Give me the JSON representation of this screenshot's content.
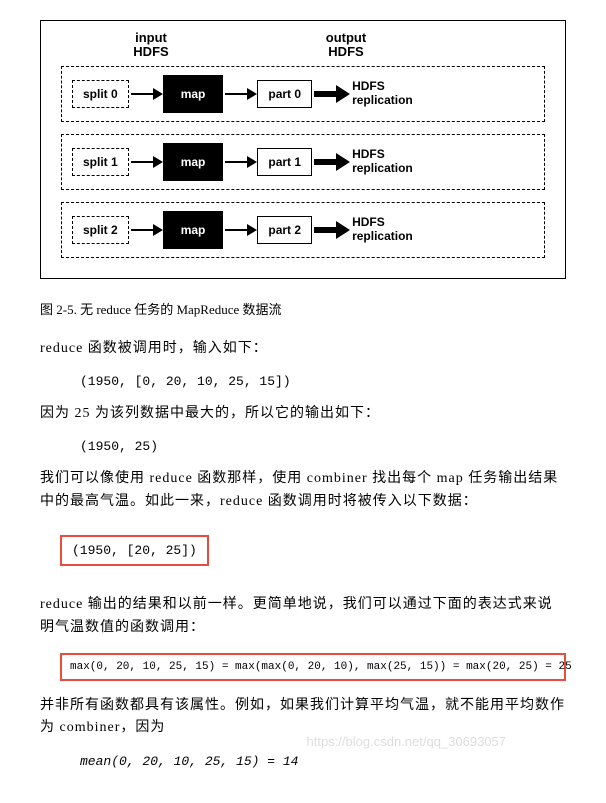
{
  "figure": {
    "input_label": "input\nHDFS",
    "output_label": "output\nHDFS",
    "rows": [
      {
        "split": "split 0",
        "map": "map",
        "part": "part 0",
        "repl": "HDFS\nreplication"
      },
      {
        "split": "split 1",
        "map": "map",
        "part": "part 1",
        "repl": "HDFS\nreplication"
      },
      {
        "split": "split 2",
        "map": "map",
        "part": "part 2",
        "repl": "HDFS\nreplication"
      }
    ]
  },
  "caption": "图 2-5. 无 reduce 任务的 MapReduce 数据流",
  "p1": "reduce 函数被调用时，输入如下：",
  "code1": "(1950, [0, 20, 10, 25, 15])",
  "p2": "因为 25 为该列数据中最大的，所以它的输出如下：",
  "code2": "(1950, 25)",
  "p3": "我们可以像使用 reduce 函数那样，使用 combiner 找出每个 map 任务输出结果中的最高气温。如此一来，reduce 函数调用时将被传入以下数据：",
  "red1": "(1950, [20, 25])",
  "p4": "reduce 输出的结果和以前一样。更简单地说，我们可以通过下面的表达式来说明气温数值的函数调用：",
  "red2": "max(0, 20, 10, 25, 15) = max(max(0, 20, 10), max(25, 15)) = max(20, 25) = 25",
  "p5": "并非所有函数都具有该属性。例如，如果我们计算平均气温，就不能用平均数作为 combiner，因为",
  "code3": "mean(0, 20, 10, 25, 15) = 14",
  "watermark": "https://blog.csdn.net/qq_30693057"
}
